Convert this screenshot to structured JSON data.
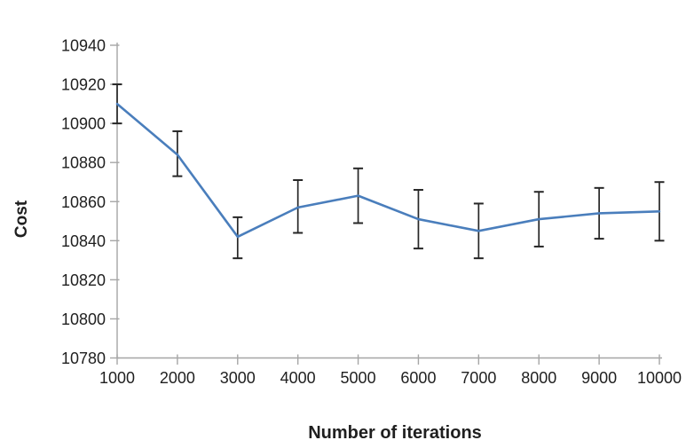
{
  "chart_data": {
    "type": "line",
    "title": "",
    "xlabel": "Number of iterations",
    "ylabel": "Cost",
    "x": [
      1000,
      2000,
      3000,
      4000,
      5000,
      6000,
      7000,
      8000,
      9000,
      10000
    ],
    "series": [
      {
        "name": "Cost",
        "values": [
          10910,
          10884,
          10842,
          10857,
          10863,
          10851,
          10845,
          10851,
          10854,
          10855
        ],
        "error_upper": [
          10920,
          10896,
          10852,
          10871,
          10877,
          10866,
          10859,
          10865,
          10867,
          10870
        ],
        "error_lower": [
          10900,
          10873,
          10831,
          10844,
          10849,
          10836,
          10831,
          10837,
          10841,
          10840
        ]
      }
    ],
    "xlim": [
      1000,
      10000
    ],
    "ylim": [
      10780,
      10940
    ],
    "x_ticks": [
      1000,
      2000,
      3000,
      4000,
      5000,
      6000,
      7000,
      8000,
      9000,
      10000
    ],
    "y_ticks": [
      10940,
      10920,
      10900,
      10880,
      10860,
      10840,
      10820,
      10800,
      10780
    ],
    "grid": false,
    "legend": "none",
    "markers": "none",
    "colors": {
      "line": "#4a7ebc",
      "error_bar": "#262626",
      "axis": "#a6a6a6",
      "text": "#1f1f1f",
      "background": "#ffffff"
    }
  }
}
